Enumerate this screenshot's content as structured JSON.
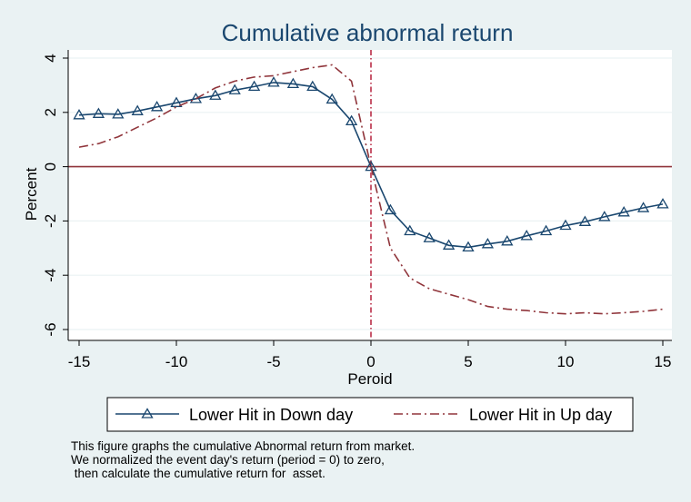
{
  "chart_data": {
    "type": "line",
    "title": "Cumulative abnormal return",
    "xlabel": "Peroid",
    "ylabel": "Percent",
    "xlim": [
      -15,
      15
    ],
    "ylim": [
      -6,
      4
    ],
    "x_ticks": [
      -15,
      -10,
      -5,
      0,
      5,
      10,
      15
    ],
    "y_ticks": [
      -6,
      -4,
      -2,
      0,
      2,
      4
    ],
    "x_tick_labels": [
      "-15",
      "-10",
      "-5",
      "0",
      "5",
      "10",
      "15"
    ],
    "y_tick_labels": [
      "-6",
      "-4",
      "-2",
      "0",
      "2",
      "4"
    ],
    "grid": true,
    "reference_lines": {
      "horizontal_y": 0,
      "vertical_x": 0
    },
    "x": [
      -15,
      -14,
      -13,
      -12,
      -11,
      -10,
      -9,
      -8,
      -7,
      -6,
      -5,
      -4,
      -3,
      -2,
      -1,
      0,
      1,
      2,
      3,
      4,
      5,
      6,
      7,
      8,
      9,
      10,
      11,
      12,
      13,
      14,
      15
    ],
    "series": [
      {
        "name": "Lower Hit in Down day",
        "style": "solid-triangle",
        "color": "#1a476f",
        "values": [
          1.9,
          1.95,
          1.93,
          2.05,
          2.2,
          2.35,
          2.5,
          2.62,
          2.82,
          2.95,
          3.1,
          3.05,
          2.95,
          2.48,
          1.68,
          0.0,
          -1.6,
          -2.37,
          -2.63,
          -2.9,
          -2.97,
          -2.85,
          -2.75,
          -2.55,
          -2.37,
          -2.17,
          -2.03,
          -1.85,
          -1.68,
          -1.52,
          -1.38
        ]
      },
      {
        "name": "Lower Hit in Up day",
        "style": "dash-dot",
        "color": "#90353b",
        "values": [
          0.72,
          0.85,
          1.1,
          1.45,
          1.8,
          2.2,
          2.5,
          2.9,
          3.15,
          3.3,
          3.35,
          3.5,
          3.65,
          3.75,
          3.15,
          0.0,
          -3.0,
          -4.1,
          -4.5,
          -4.7,
          -4.9,
          -5.15,
          -5.25,
          -5.3,
          -5.38,
          -5.42,
          -5.38,
          -5.42,
          -5.38,
          -5.33,
          -5.25
        ]
      }
    ],
    "legend_position": "bottom"
  },
  "colors": {
    "background": "#eaf2f3",
    "plot_area": "#ffffff",
    "zero_line": "#90353b",
    "grid": "#eaf2f3"
  },
  "note_lines": [
    "This figure graphs the cumulative Abnormal return from market.",
    "We normalized the event day's return (period = 0) to zero,",
    " then calculate the cumulative return for  asset."
  ]
}
